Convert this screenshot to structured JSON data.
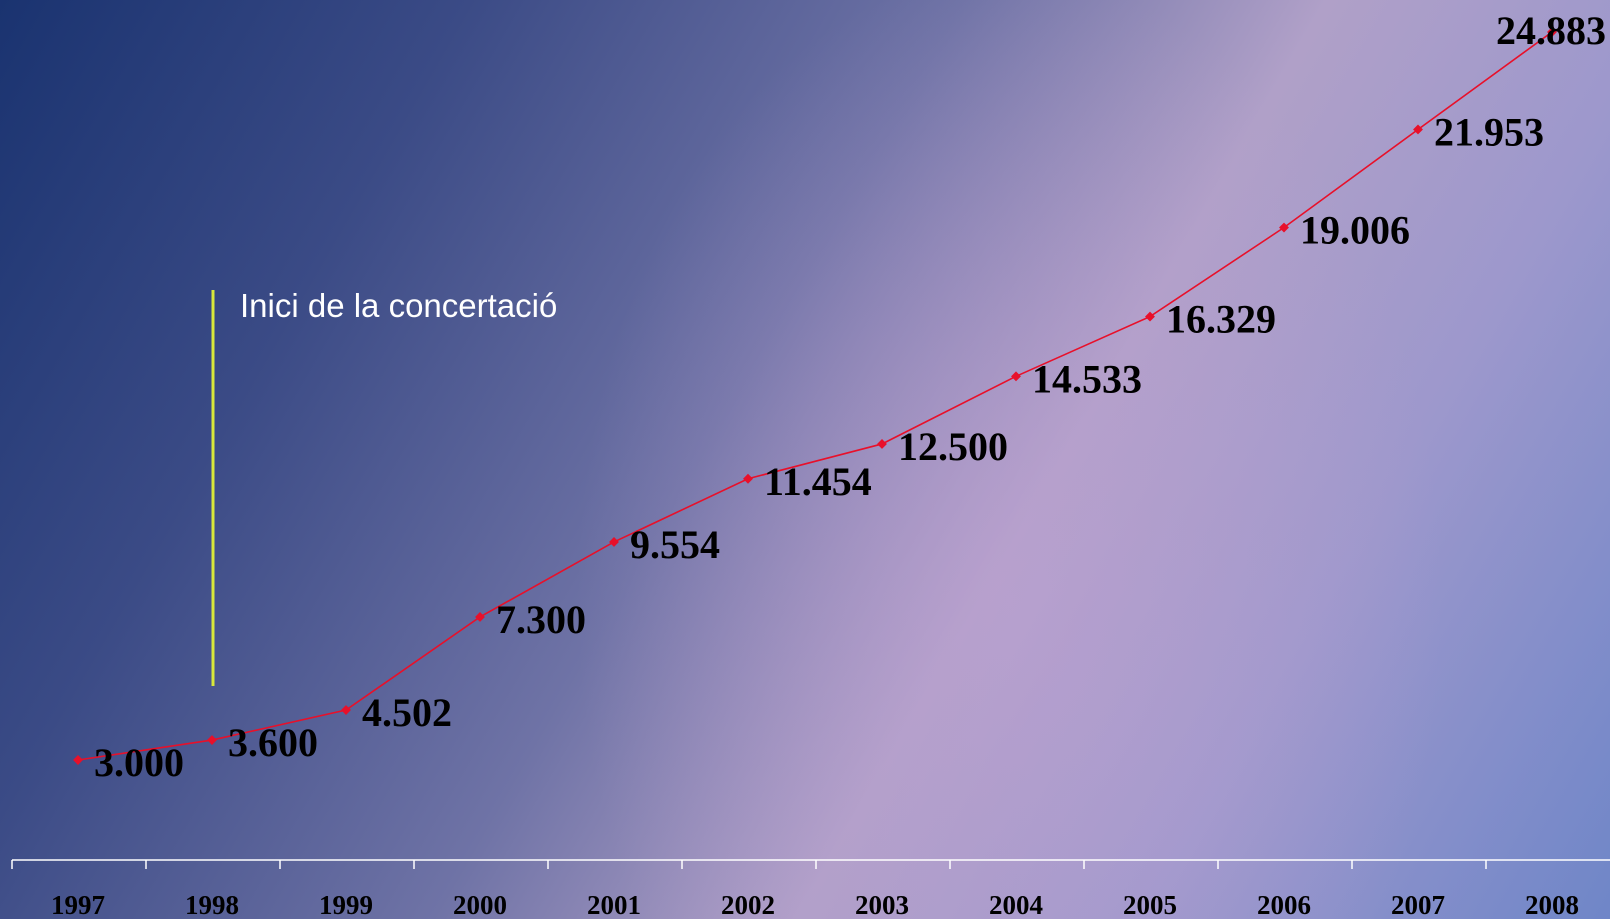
{
  "chart_data": {
    "type": "line",
    "categories": [
      "1997",
      "1998",
      "1999",
      "2000",
      "2001",
      "2002",
      "2003",
      "2004",
      "2005",
      "2006",
      "2007",
      "2008"
    ],
    "values": [
      3000,
      3600,
      4502,
      7300,
      9554,
      11454,
      12500,
      14533,
      16329,
      19006,
      21953,
      24883
    ],
    "value_labels": [
      "3.000",
      "3.600",
      "4.502",
      "7.300",
      "9.554",
      "11.454",
      "12.500",
      "14.533",
      "16.329",
      "19.006",
      "21.953",
      "24.883"
    ],
    "series_color": "#e8102a",
    "marker_color": "#e8102a",
    "annotation": {
      "text": "Inici de la concertació",
      "at_category": "1998",
      "line_color": "#d8e83a"
    },
    "axis_color": "#ffffff",
    "grid": false,
    "legend": "none"
  }
}
